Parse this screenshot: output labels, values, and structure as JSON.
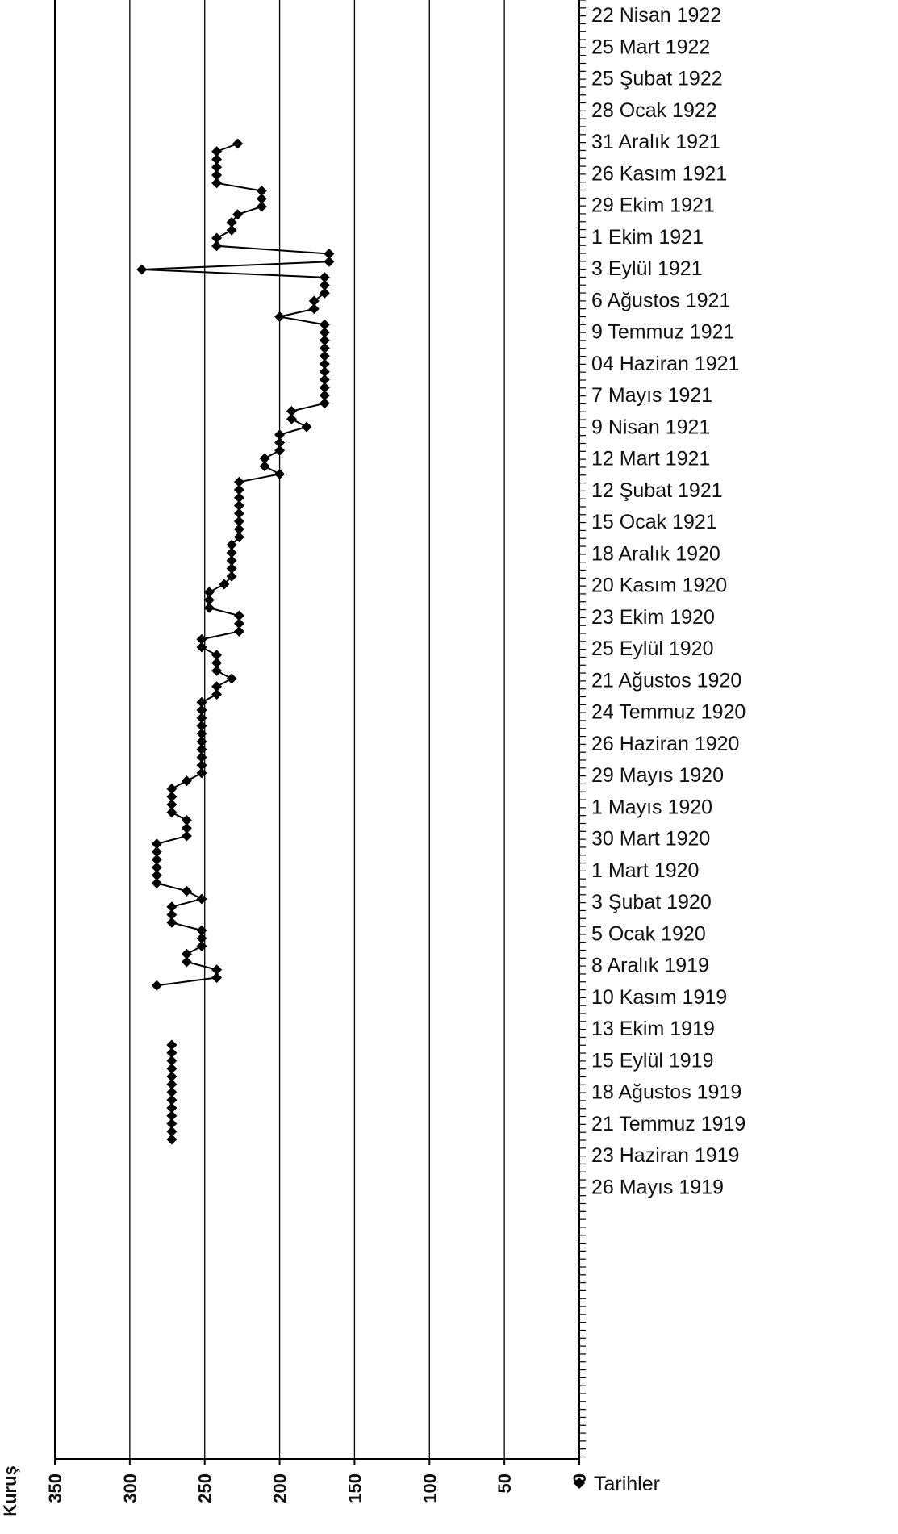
{
  "chart_data": {
    "type": "line",
    "orientation": "horizontal",
    "title": "",
    "xlabel": "",
    "ylabel": "Kuruş",
    "value_axis": {
      "range": [
        0,
        350
      ],
      "ticks": [
        "350",
        "300",
        "250",
        "200",
        "150",
        "100",
        "50",
        "0"
      ],
      "reversed": true,
      "gridlines": true
    },
    "legend": {
      "placement": "bottom-right",
      "entries": [
        "Tarihler"
      ]
    },
    "date_labels": [
      "22 Nisan 1922",
      "25 Mart 1922",
      "25 Şubat 1922",
      "28 Ocak 1922",
      "31 Aralık 1921",
      "26 Kasım 1921",
      "29 Ekim 1921",
      "1 Ekim 1921",
      "3 Eylül 1921",
      "6 Ağustos 1921",
      "9 Temmuz 1921",
      "04 Haziran 1921",
      "7 Mayıs 1921",
      "9 Nisan 1921",
      "12 Mart 1921",
      "12 Şubat 1921",
      "15 Ocak 1921",
      "18 Aralık 1920",
      "20 Kasım 1920",
      "23 Ekim 1920",
      "25 Eylül 1920",
      "21 Ağustos 1920",
      "24 Temmuz 1920",
      "26 Haziran 1920",
      "29 Mayıs 1920",
      "1 Mayıs 1920",
      "30 Mart 1920",
      "1 Mart 1920",
      "3 Şubat 1920",
      "5 Ocak 1920",
      "8 Aralık 1919",
      "10 Kasım 1919",
      "13 Ekim 1919",
      "15 Eylül 1919",
      "18 Ağustos 1919",
      "21 Temmuz 1919",
      "23 Haziran 1919",
      "26 Mayıs 1919"
    ],
    "series": [
      {
        "name": "Tarihler",
        "note_values_in_order_of_plot_from_top": true,
        "segments": [
          [
            228,
            242,
            242,
            242,
            242,
            242,
            212,
            212,
            212,
            228,
            232,
            232,
            242,
            242,
            167,
            167,
            292,
            170,
            170,
            170,
            177,
            177,
            200,
            170,
            170,
            170,
            170,
            170,
            170,
            170,
            170,
            170,
            170,
            170,
            192,
            192,
            182,
            200,
            200,
            200,
            210,
            210,
            200,
            227,
            227,
            227,
            227,
            227,
            227,
            227,
            227,
            232,
            232,
            232,
            232,
            232,
            237,
            247,
            247,
            247,
            227,
            227,
            227,
            252,
            252,
            242,
            242,
            242,
            232,
            242,
            242,
            252,
            252,
            252,
            252,
            252,
            252,
            252,
            252,
            252,
            252,
            262,
            272,
            272,
            272,
            272,
            262,
            262,
            262,
            282,
            282,
            282,
            282,
            282,
            282,
            262,
            252,
            272,
            272,
            272,
            252,
            252,
            252,
            262,
            262,
            242,
            242,
            282
          ],
          [
            272,
            272,
            272,
            272,
            272,
            272,
            272,
            272,
            272,
            272,
            272,
            272,
            272
          ]
        ]
      }
    ]
  }
}
